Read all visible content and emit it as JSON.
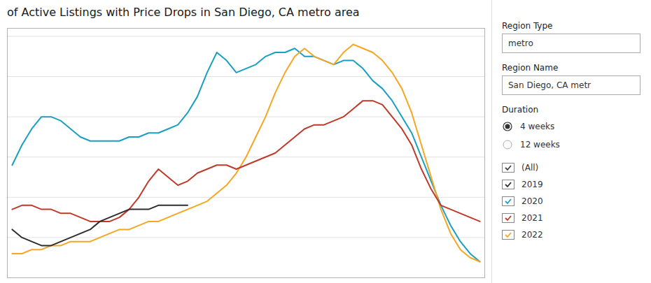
{
  "chart_data": {
    "type": "line",
    "title": "of Active Listings with Price Drops in San Diego, CA metro area",
    "series": [
      {
        "name": "2020",
        "color": "#1a9fc0",
        "x": [
          0,
          1,
          2,
          3,
          4,
          5,
          6,
          7,
          8,
          9,
          10,
          11,
          12,
          13,
          14,
          15,
          16,
          17,
          18,
          19,
          20,
          21,
          22,
          23,
          24,
          25,
          26,
          27,
          28,
          29,
          30,
          31,
          32,
          33,
          34,
          35,
          36,
          37,
          38,
          39,
          40,
          41,
          42,
          43,
          44,
          45,
          46,
          47,
          48
        ],
        "values": [
          28,
          33,
          37,
          40,
          40,
          39,
          37,
          35,
          34,
          34,
          34,
          34,
          35,
          35,
          36,
          36,
          37,
          38,
          41,
          45,
          51,
          56,
          54,
          51,
          52,
          53,
          55,
          56,
          56,
          57,
          55,
          55,
          54,
          53,
          54,
          54,
          52,
          49,
          47,
          44,
          40,
          36,
          30,
          24,
          18,
          13,
          9,
          6,
          4
        ]
      },
      {
        "name": "2022",
        "color": "#f5a623",
        "x": [
          0,
          1,
          2,
          3,
          4,
          5,
          6,
          7,
          8,
          9,
          10,
          11,
          12,
          13,
          14,
          15,
          16,
          17,
          18,
          19,
          20,
          21,
          22,
          23,
          24,
          25,
          26,
          27,
          28,
          29,
          30,
          31,
          32,
          33,
          34,
          35,
          36,
          37,
          38,
          39,
          40,
          41,
          42,
          43,
          44,
          45,
          46,
          47,
          48
        ],
        "values": [
          6,
          6,
          7,
          7,
          8,
          8,
          9,
          9,
          9,
          10,
          11,
          12,
          12,
          13,
          14,
          14,
          15,
          16,
          17,
          18,
          19,
          21,
          23,
          26,
          30,
          35,
          40,
          46,
          51,
          55,
          57,
          55,
          54,
          53,
          56,
          58,
          57,
          56,
          54,
          51,
          47,
          41,
          33,
          25,
          17,
          11,
          7,
          5,
          4
        ]
      },
      {
        "name": "2021",
        "color": "#c0392b",
        "x": [
          0,
          1,
          2,
          3,
          4,
          5,
          6,
          7,
          8,
          9,
          10,
          11,
          12,
          13,
          14,
          15,
          16,
          17,
          18,
          19,
          20,
          21,
          22,
          23,
          24,
          25,
          26,
          27,
          28,
          29,
          30,
          31,
          32,
          33,
          34,
          35,
          36,
          37,
          38,
          39,
          40,
          41,
          42,
          43,
          44,
          45,
          46,
          47,
          48
        ],
        "values": [
          17,
          18,
          18,
          17,
          17,
          16,
          16,
          15,
          14,
          14,
          14,
          15,
          17,
          20,
          24,
          27,
          25,
          23,
          24,
          26,
          27,
          28,
          28,
          27,
          28,
          29,
          30,
          31,
          33,
          35,
          37,
          38,
          38,
          39,
          40,
          42,
          44,
          44,
          43,
          40,
          37,
          33,
          27,
          22,
          18,
          17,
          16,
          15,
          14
        ]
      },
      {
        "name": "2019",
        "color": "#2d2d2d",
        "x": [
          0,
          1,
          2,
          3,
          4,
          5,
          6,
          7,
          8,
          9,
          10,
          11,
          12,
          13,
          14,
          15,
          16,
          17,
          18
        ],
        "values": [
          12,
          10,
          9,
          8,
          8,
          9,
          10,
          11,
          12,
          14,
          15,
          16,
          17,
          17,
          17,
          18,
          18,
          18,
          18
        ]
      }
    ],
    "xlim": [
      -0.5,
      48.5
    ],
    "xticks": [],
    "ylim": [
      0,
      62
    ],
    "yticks": [
      10,
      20,
      30,
      40,
      50,
      60
    ],
    "grid": true,
    "tick_labels": false,
    "annotations": [
      "Region Type",
      "metro",
      "Region Name",
      "San Diego, CA metr",
      "Duration",
      "4 weeks",
      "12 weeks",
      "(All)",
      "2019",
      "2020",
      "2021",
      "2022"
    ]
  }
}
